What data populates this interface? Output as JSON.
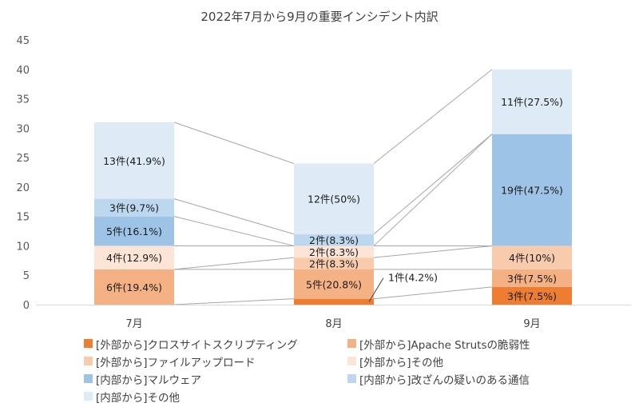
{
  "chart_data": {
    "type": "bar",
    "stacked": true,
    "title": "2022年7月から9月の重要インシデント内訳",
    "categories": [
      "7月",
      "8月",
      "9月"
    ],
    "ylim": [
      0,
      45
    ],
    "yticks": [
      0,
      5,
      10,
      15,
      20,
      25,
      30,
      35,
      40,
      45
    ],
    "grid": false,
    "legend_position": "bottom",
    "series": [
      {
        "name": "[外部から]クロスサイトスクリプティング",
        "color": "#ED7D31",
        "values": [
          0,
          1,
          3
        ],
        "labels": [
          "",
          "1件(4.2%)",
          "3件(7.5%)"
        ]
      },
      {
        "name": "[外部から]Apache Strutsの脆弱性",
        "color": "#F4B183",
        "values": [
          6,
          5,
          3
        ],
        "labels": [
          "6件(19.4%)",
          "5件(20.8%)",
          "3件(7.5%)"
        ]
      },
      {
        "name": "[外部から]ファイルアップロード",
        "color": "#F8CBAD",
        "values": [
          0,
          2,
          4
        ],
        "labels": [
          "",
          "2件(8.3%)",
          "4件(10%)"
        ]
      },
      {
        "name": "[外部から]その他",
        "color": "#FCE4D6",
        "values": [
          4,
          2,
          0
        ],
        "labels": [
          "4件(12.9%)",
          "2件(8.3%)",
          ""
        ]
      },
      {
        "name": "[内部から]マルウェア",
        "color": "#9DC3E6",
        "values": [
          5,
          0,
          19
        ],
        "labels": [
          "5件(16.1%)",
          "",
          "19件(47.5%)"
        ]
      },
      {
        "name": "[内部から]改ざんの疑いのある通信",
        "color": "#BDD7EE",
        "values": [
          3,
          2,
          0
        ],
        "labels": [
          "3件(9.7%)",
          "2件(8.3%)",
          ""
        ]
      },
      {
        "name": "[内部から]その他",
        "color": "#DEEBF7",
        "values": [
          13,
          12,
          11
        ],
        "labels": [
          "13件(41.9%)",
          "12件(50%)",
          "11件(27.5%)"
        ]
      }
    ]
  }
}
